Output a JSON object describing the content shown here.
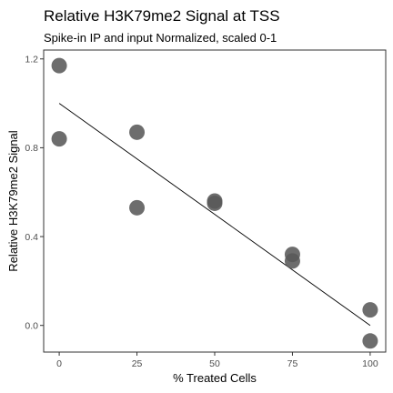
{
  "chart_data": {
    "type": "scatter",
    "title": "Relative H3K79me2 Signal at TSS",
    "subtitle": "Spike-in IP and input Normalized, scaled 0-1",
    "xlabel": "% Treated Cells",
    "ylabel": "Relative H3K79me2 Signal",
    "x_ticks": [
      0,
      25,
      50,
      75,
      100
    ],
    "x_tick_labels": [
      "0",
      "25",
      "50",
      "75",
      "100"
    ],
    "y_ticks": [
      0.0,
      0.4,
      0.8,
      1.2
    ],
    "y_tick_labels": [
      "0.0",
      "0.4",
      "0.8",
      "1.2"
    ],
    "xlim": [
      -5,
      105
    ],
    "ylim": [
      -0.12,
      1.24
    ],
    "grid": false,
    "series": [
      {
        "points": [
          {
            "x": 0,
            "y": 1.17
          },
          {
            "x": 0,
            "y": 0.84
          },
          {
            "x": 25,
            "y": 0.87
          },
          {
            "x": 25,
            "y": 0.53
          },
          {
            "x": 50,
            "y": 0.56
          },
          {
            "x": 50,
            "y": 0.55
          },
          {
            "x": 75,
            "y": 0.32
          },
          {
            "x": 75,
            "y": 0.29
          },
          {
            "x": 100,
            "y": 0.07
          },
          {
            "x": 100,
            "y": -0.07
          }
        ],
        "color": "#595959"
      }
    ],
    "trend_line": {
      "x": [
        0,
        100
      ],
      "y": [
        1.0,
        0.0
      ],
      "color": "#000000"
    }
  }
}
